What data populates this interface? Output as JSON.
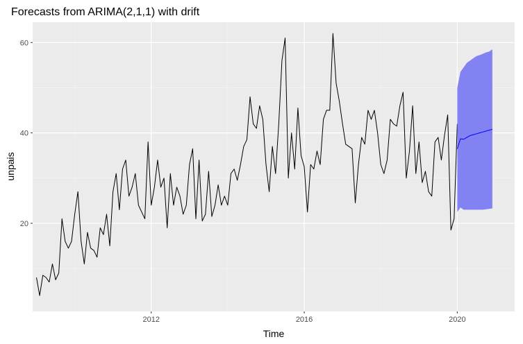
{
  "chart_data": {
    "type": "line",
    "title": "Forecasts from ARIMA(2,1,1) with drift",
    "xlabel": "Time",
    "ylabel": "unpais",
    "xlim": [
      2008.9,
      2021.5
    ],
    "ylim": [
      0.5,
      64.5
    ],
    "x_ticks": [
      2012,
      2016,
      2020
    ],
    "y_ticks": [
      20,
      40,
      60
    ],
    "grid": true,
    "legend": "none",
    "series": [
      {
        "kind": "observed",
        "start": 2009.0,
        "frequency": 12,
        "values": [
          8,
          4,
          8.5,
          8,
          7,
          11,
          7.5,
          9,
          21,
          16,
          14.5,
          16,
          22,
          27,
          16,
          11,
          18,
          14.5,
          14,
          12.5,
          19,
          17.5,
          22,
          15,
          27,
          31,
          23,
          32,
          34,
          26,
          28,
          31,
          24,
          22.5,
          21,
          38,
          24,
          28,
          34,
          28,
          30,
          19,
          31,
          24,
          28,
          26,
          22,
          24,
          33,
          36.5,
          21,
          34,
          20.5,
          22,
          31.5,
          21.5,
          24,
          28.5,
          24,
          26,
          24,
          31,
          32,
          29.5,
          33,
          37,
          38.5,
          48,
          42,
          41,
          46,
          43,
          33,
          27,
          37,
          31,
          42,
          56,
          61,
          30,
          40,
          32,
          45.5,
          35,
          32.5,
          22.5,
          33,
          32,
          36,
          33,
          43,
          45,
          45,
          62,
          51,
          47,
          42,
          37.5,
          37,
          36.5,
          24.5,
          33,
          39,
          37.5,
          45,
          43,
          45,
          40,
          33,
          31,
          34,
          43,
          42,
          41.5,
          46,
          49,
          30,
          36,
          46,
          31,
          38,
          29,
          31.5,
          27,
          26,
          38,
          39,
          34,
          39.5,
          44,
          18.5,
          21,
          42
        ]
      },
      {
        "kind": "forecast",
        "start": 2020.0,
        "frequency": 12,
        "values": [
          36.5,
          38.7,
          38.6,
          39.0,
          39.4,
          39.6,
          39.8,
          40.0,
          40.2,
          40.4,
          40.6,
          40.8
        ],
        "lower": [
          22.5,
          23.5,
          23.0,
          23.0,
          23.0,
          23.0,
          23.0,
          23.0,
          23.0,
          23.1,
          23.2,
          23.3
        ],
        "upper": [
          50.0,
          53.5,
          54.5,
          55.5,
          56.0,
          56.5,
          57.0,
          57.2,
          57.5,
          57.8,
          58.0,
          58.5
        ]
      }
    ],
    "colors": {
      "panel": "#EBEBEB",
      "grid_major": "#FFFFFF",
      "grid_minor": "#F5F5F5",
      "observed_line": "#000000",
      "forecast_line": "#0000FF",
      "interval_fill": "#8282F2",
      "tick_text": "#4D4D4D"
    }
  }
}
